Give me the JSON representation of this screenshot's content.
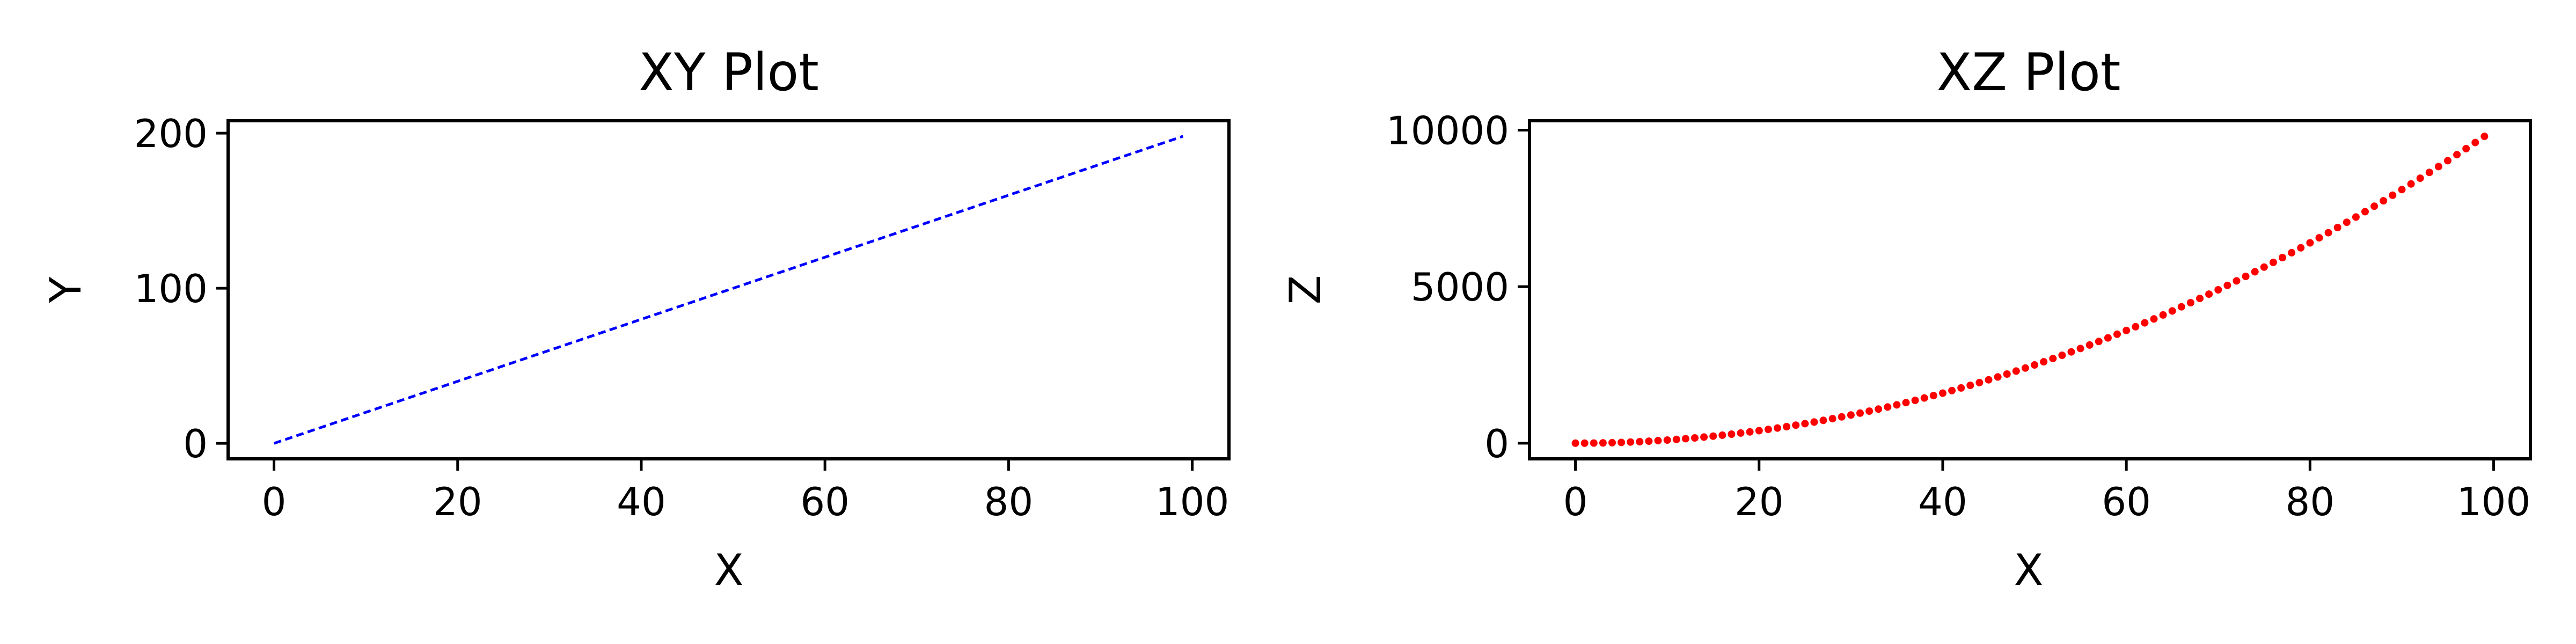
{
  "chart_data": [
    {
      "type": "line",
      "title": "XY Plot",
      "xlabel": "X",
      "ylabel": "Y",
      "xlim": [
        -5,
        104
      ],
      "ylim": [
        -10,
        208
      ],
      "xticks": [
        0,
        20,
        40,
        60,
        80,
        100
      ],
      "yticks": [
        0,
        100,
        200
      ],
      "x_tick_labels": [
        "0",
        "20",
        "40",
        "60",
        "80",
        "100"
      ],
      "y_tick_labels": [
        "0",
        "100",
        "200"
      ],
      "grid": false,
      "series": [
        {
          "color": "#0000ff",
          "line_style": "dashed",
          "x": [
            0,
            10,
            20,
            30,
            40,
            50,
            60,
            70,
            80,
            90,
            99
          ],
          "y": [
            0,
            20,
            40,
            60,
            80,
            100,
            120,
            140,
            160,
            180,
            198
          ]
        }
      ]
    },
    {
      "type": "scatter",
      "title": "XZ Plot",
      "xlabel": "X",
      "ylabel": "Z",
      "xlim": [
        -5,
        104
      ],
      "ylim": [
        -500,
        10300
      ],
      "xticks": [
        0,
        20,
        40,
        60,
        80,
        100
      ],
      "yticks": [
        0,
        5000,
        10000
      ],
      "x_tick_labels": [
        "0",
        "20",
        "40",
        "60",
        "80",
        "100"
      ],
      "y_tick_labels": [
        "0",
        "5000",
        "10000"
      ],
      "grid": false,
      "series": [
        {
          "color": "#ff0000",
          "marker": "dot",
          "x": [
            0,
            1,
            2,
            3,
            4,
            5,
            6,
            7,
            8,
            9,
            10,
            11,
            12,
            13,
            14,
            15,
            16,
            17,
            18,
            19,
            20,
            21,
            22,
            23,
            24,
            25,
            26,
            27,
            28,
            29,
            30,
            31,
            32,
            33,
            34,
            35,
            36,
            37,
            38,
            39,
            40,
            41,
            42,
            43,
            44,
            45,
            46,
            47,
            48,
            49,
            50,
            51,
            52,
            53,
            54,
            55,
            56,
            57,
            58,
            59,
            60,
            61,
            62,
            63,
            64,
            65,
            66,
            67,
            68,
            69,
            70,
            71,
            72,
            73,
            74,
            75,
            76,
            77,
            78,
            79,
            80,
            81,
            82,
            83,
            84,
            85,
            86,
            87,
            88,
            89,
            90,
            91,
            92,
            93,
            94,
            95,
            96,
            97,
            98,
            99
          ],
          "y": [
            0,
            1,
            4,
            9,
            16,
            25,
            36,
            49,
            64,
            81,
            100,
            121,
            144,
            169,
            196,
            225,
            256,
            289,
            324,
            361,
            400,
            441,
            484,
            529,
            576,
            625,
            676,
            729,
            784,
            841,
            900,
            961,
            1024,
            1089,
            1156,
            1225,
            1296,
            1369,
            1444,
            1521,
            1600,
            1681,
            1764,
            1849,
            1936,
            2025,
            2116,
            2209,
            2304,
            2401,
            2500,
            2601,
            2704,
            2809,
            2916,
            3025,
            3136,
            3249,
            3364,
            3481,
            3600,
            3721,
            3844,
            3969,
            4096,
            4225,
            4356,
            4489,
            4624,
            4761,
            4900,
            5041,
            5184,
            5329,
            5476,
            5625,
            5776,
            5929,
            6084,
            6241,
            6400,
            6561,
            6724,
            6889,
            7056,
            7225,
            7396,
            7569,
            7744,
            7921,
            8100,
            8281,
            8464,
            8649,
            8836,
            9025,
            9216,
            9409,
            9604,
            9801
          ]
        }
      ]
    }
  ]
}
